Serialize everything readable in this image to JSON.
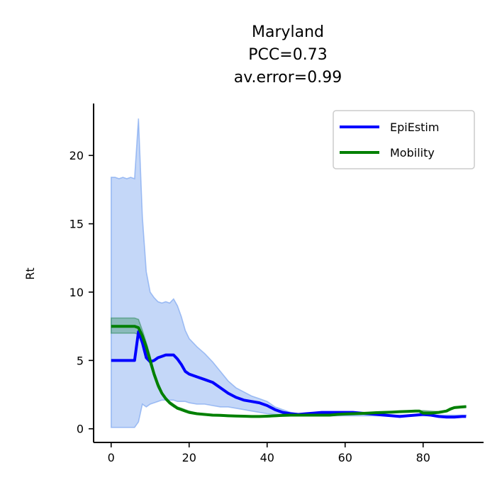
{
  "chart_data": {
    "type": "line",
    "title_lines": [
      "Maryland",
      "PCC=0.73",
      "av.error=0.99"
    ],
    "xlabel": "",
    "ylabel": "Rt",
    "xlim": [
      -4.5,
      95.5
    ],
    "ylim": [
      -1.0,
      23.8
    ],
    "xticks": [
      0,
      20,
      40,
      60,
      80
    ],
    "yticks": [
      0,
      5,
      10,
      15,
      20
    ],
    "grid": false,
    "legend_position": "top-right",
    "series": [
      {
        "name": "EpiEstim",
        "color": "#0000ff",
        "x": [
          0,
          1,
          2,
          3,
          4,
          5,
          6,
          7,
          8,
          9,
          10,
          11,
          12,
          13,
          14,
          15,
          16,
          17,
          18,
          19,
          20,
          22,
          24,
          26,
          28,
          30,
          32,
          34,
          36,
          38,
          40,
          42,
          44,
          46,
          48,
          50,
          52,
          54,
          56,
          58,
          60,
          62,
          64,
          66,
          68,
          70,
          72,
          74,
          76,
          78,
          80,
          82,
          84,
          86,
          88,
          90,
          91
        ],
        "values": [
          5.0,
          5.0,
          5.0,
          5.0,
          5.0,
          5.0,
          5.0,
          7.1,
          6.3,
          5.2,
          4.9,
          5.0,
          5.2,
          5.3,
          5.4,
          5.4,
          5.4,
          5.1,
          4.7,
          4.2,
          4.0,
          3.8,
          3.6,
          3.4,
          3.0,
          2.6,
          2.3,
          2.1,
          2.0,
          1.9,
          1.7,
          1.4,
          1.2,
          1.1,
          1.05,
          1.1,
          1.15,
          1.2,
          1.2,
          1.2,
          1.2,
          1.2,
          1.15,
          1.1,
          1.05,
          1.0,
          0.95,
          0.9,
          0.95,
          1.0,
          1.05,
          1.0,
          0.9,
          0.85,
          0.85,
          0.9,
          0.9
        ]
      },
      {
        "name": "Mobility",
        "color": "#008000",
        "x": [
          0,
          1,
          2,
          3,
          4,
          5,
          6,
          7,
          8,
          9,
          10,
          11,
          12,
          13,
          14,
          15,
          16,
          17,
          18,
          19,
          20,
          22,
          24,
          26,
          28,
          30,
          32,
          34,
          36,
          38,
          40,
          42,
          44,
          46,
          48,
          50,
          52,
          54,
          56,
          58,
          60,
          62,
          64,
          66,
          68,
          70,
          72,
          74,
          76,
          78,
          79,
          80,
          82,
          84,
          86,
          87,
          88,
          90,
          91
        ],
        "values": [
          7.5,
          7.5,
          7.5,
          7.5,
          7.5,
          7.5,
          7.5,
          7.4,
          6.8,
          6.0,
          5.0,
          4.0,
          3.2,
          2.6,
          2.2,
          1.9,
          1.7,
          1.5,
          1.4,
          1.3,
          1.2,
          1.1,
          1.05,
          1.0,
          0.98,
          0.95,
          0.93,
          0.92,
          0.9,
          0.9,
          0.92,
          0.95,
          0.98,
          1.0,
          1.0,
          1.0,
          1.0,
          1.0,
          1.0,
          1.05,
          1.08,
          1.1,
          1.12,
          1.15,
          1.18,
          1.2,
          1.22,
          1.25,
          1.27,
          1.3,
          1.3,
          1.15,
          1.15,
          1.2,
          1.3,
          1.45,
          1.55,
          1.6,
          1.62
        ]
      }
    ],
    "bands": [
      {
        "series": "EpiEstim",
        "color": "#6495ed",
        "x": [
          0,
          1,
          2,
          3,
          4,
          5,
          6,
          7,
          8,
          9,
          10,
          11,
          12,
          13,
          14,
          15,
          16,
          17,
          18,
          19,
          20,
          22,
          24,
          26,
          28,
          30,
          32,
          34,
          36,
          38,
          40,
          42,
          44,
          46,
          48,
          50,
          55,
          60,
          70,
          80,
          91
        ],
        "upper": [
          18.4,
          18.4,
          18.3,
          18.4,
          18.3,
          18.4,
          18.3,
          22.7,
          15.5,
          11.5,
          10.0,
          9.6,
          9.3,
          9.2,
          9.3,
          9.2,
          9.5,
          9.0,
          8.2,
          7.2,
          6.6,
          6.0,
          5.5,
          4.9,
          4.2,
          3.5,
          3.0,
          2.7,
          2.4,
          2.2,
          2.0,
          1.6,
          1.4,
          1.2,
          1.1,
          1.1,
          1.1,
          1.1,
          1.0,
          1.0,
          1.0
        ],
        "lower": [
          0.1,
          0.1,
          0.1,
          0.1,
          0.1,
          0.1,
          0.1,
          0.5,
          1.8,
          1.6,
          1.8,
          1.9,
          2.0,
          2.1,
          2.1,
          2.1,
          2.1,
          2.0,
          2.0,
          2.0,
          1.9,
          1.8,
          1.8,
          1.7,
          1.6,
          1.6,
          1.5,
          1.4,
          1.3,
          1.2,
          1.1,
          1.05,
          1.0,
          0.95,
          0.95,
          0.95,
          0.95,
          0.95,
          0.95,
          0.95,
          0.95
        ]
      },
      {
        "series": "Mobility",
        "color": "#2e8b57",
        "x": [
          0,
          1,
          2,
          3,
          4,
          5,
          6,
          7,
          8,
          9,
          10,
          11,
          12,
          13,
          14,
          15,
          16,
          17,
          18,
          19,
          20,
          22,
          24,
          26,
          28,
          30,
          34,
          38,
          42,
          50,
          60,
          70,
          80,
          84,
          86,
          88,
          91
        ],
        "upper": [
          8.1,
          8.1,
          8.1,
          8.1,
          8.1,
          8.1,
          8.1,
          8.0,
          7.2,
          6.3,
          5.3,
          4.2,
          3.4,
          2.7,
          2.3,
          2.0,
          1.8,
          1.6,
          1.5,
          1.4,
          1.3,
          1.15,
          1.1,
          1.05,
          1.0,
          0.98,
          0.95,
          0.93,
          0.97,
          1.03,
          1.12,
          1.23,
          1.33,
          1.25,
          1.35,
          1.6,
          1.67
        ],
        "lower": [
          7.0,
          7.0,
          7.0,
          7.0,
          7.0,
          7.0,
          7.0,
          6.9,
          6.4,
          5.7,
          4.7,
          3.8,
          3.0,
          2.5,
          2.1,
          1.8,
          1.6,
          1.45,
          1.35,
          1.25,
          1.15,
          1.05,
          1.0,
          0.95,
          0.93,
          0.9,
          0.88,
          0.87,
          0.9,
          0.97,
          1.04,
          1.17,
          1.27,
          1.15,
          1.25,
          1.5,
          1.57
        ]
      }
    ]
  }
}
